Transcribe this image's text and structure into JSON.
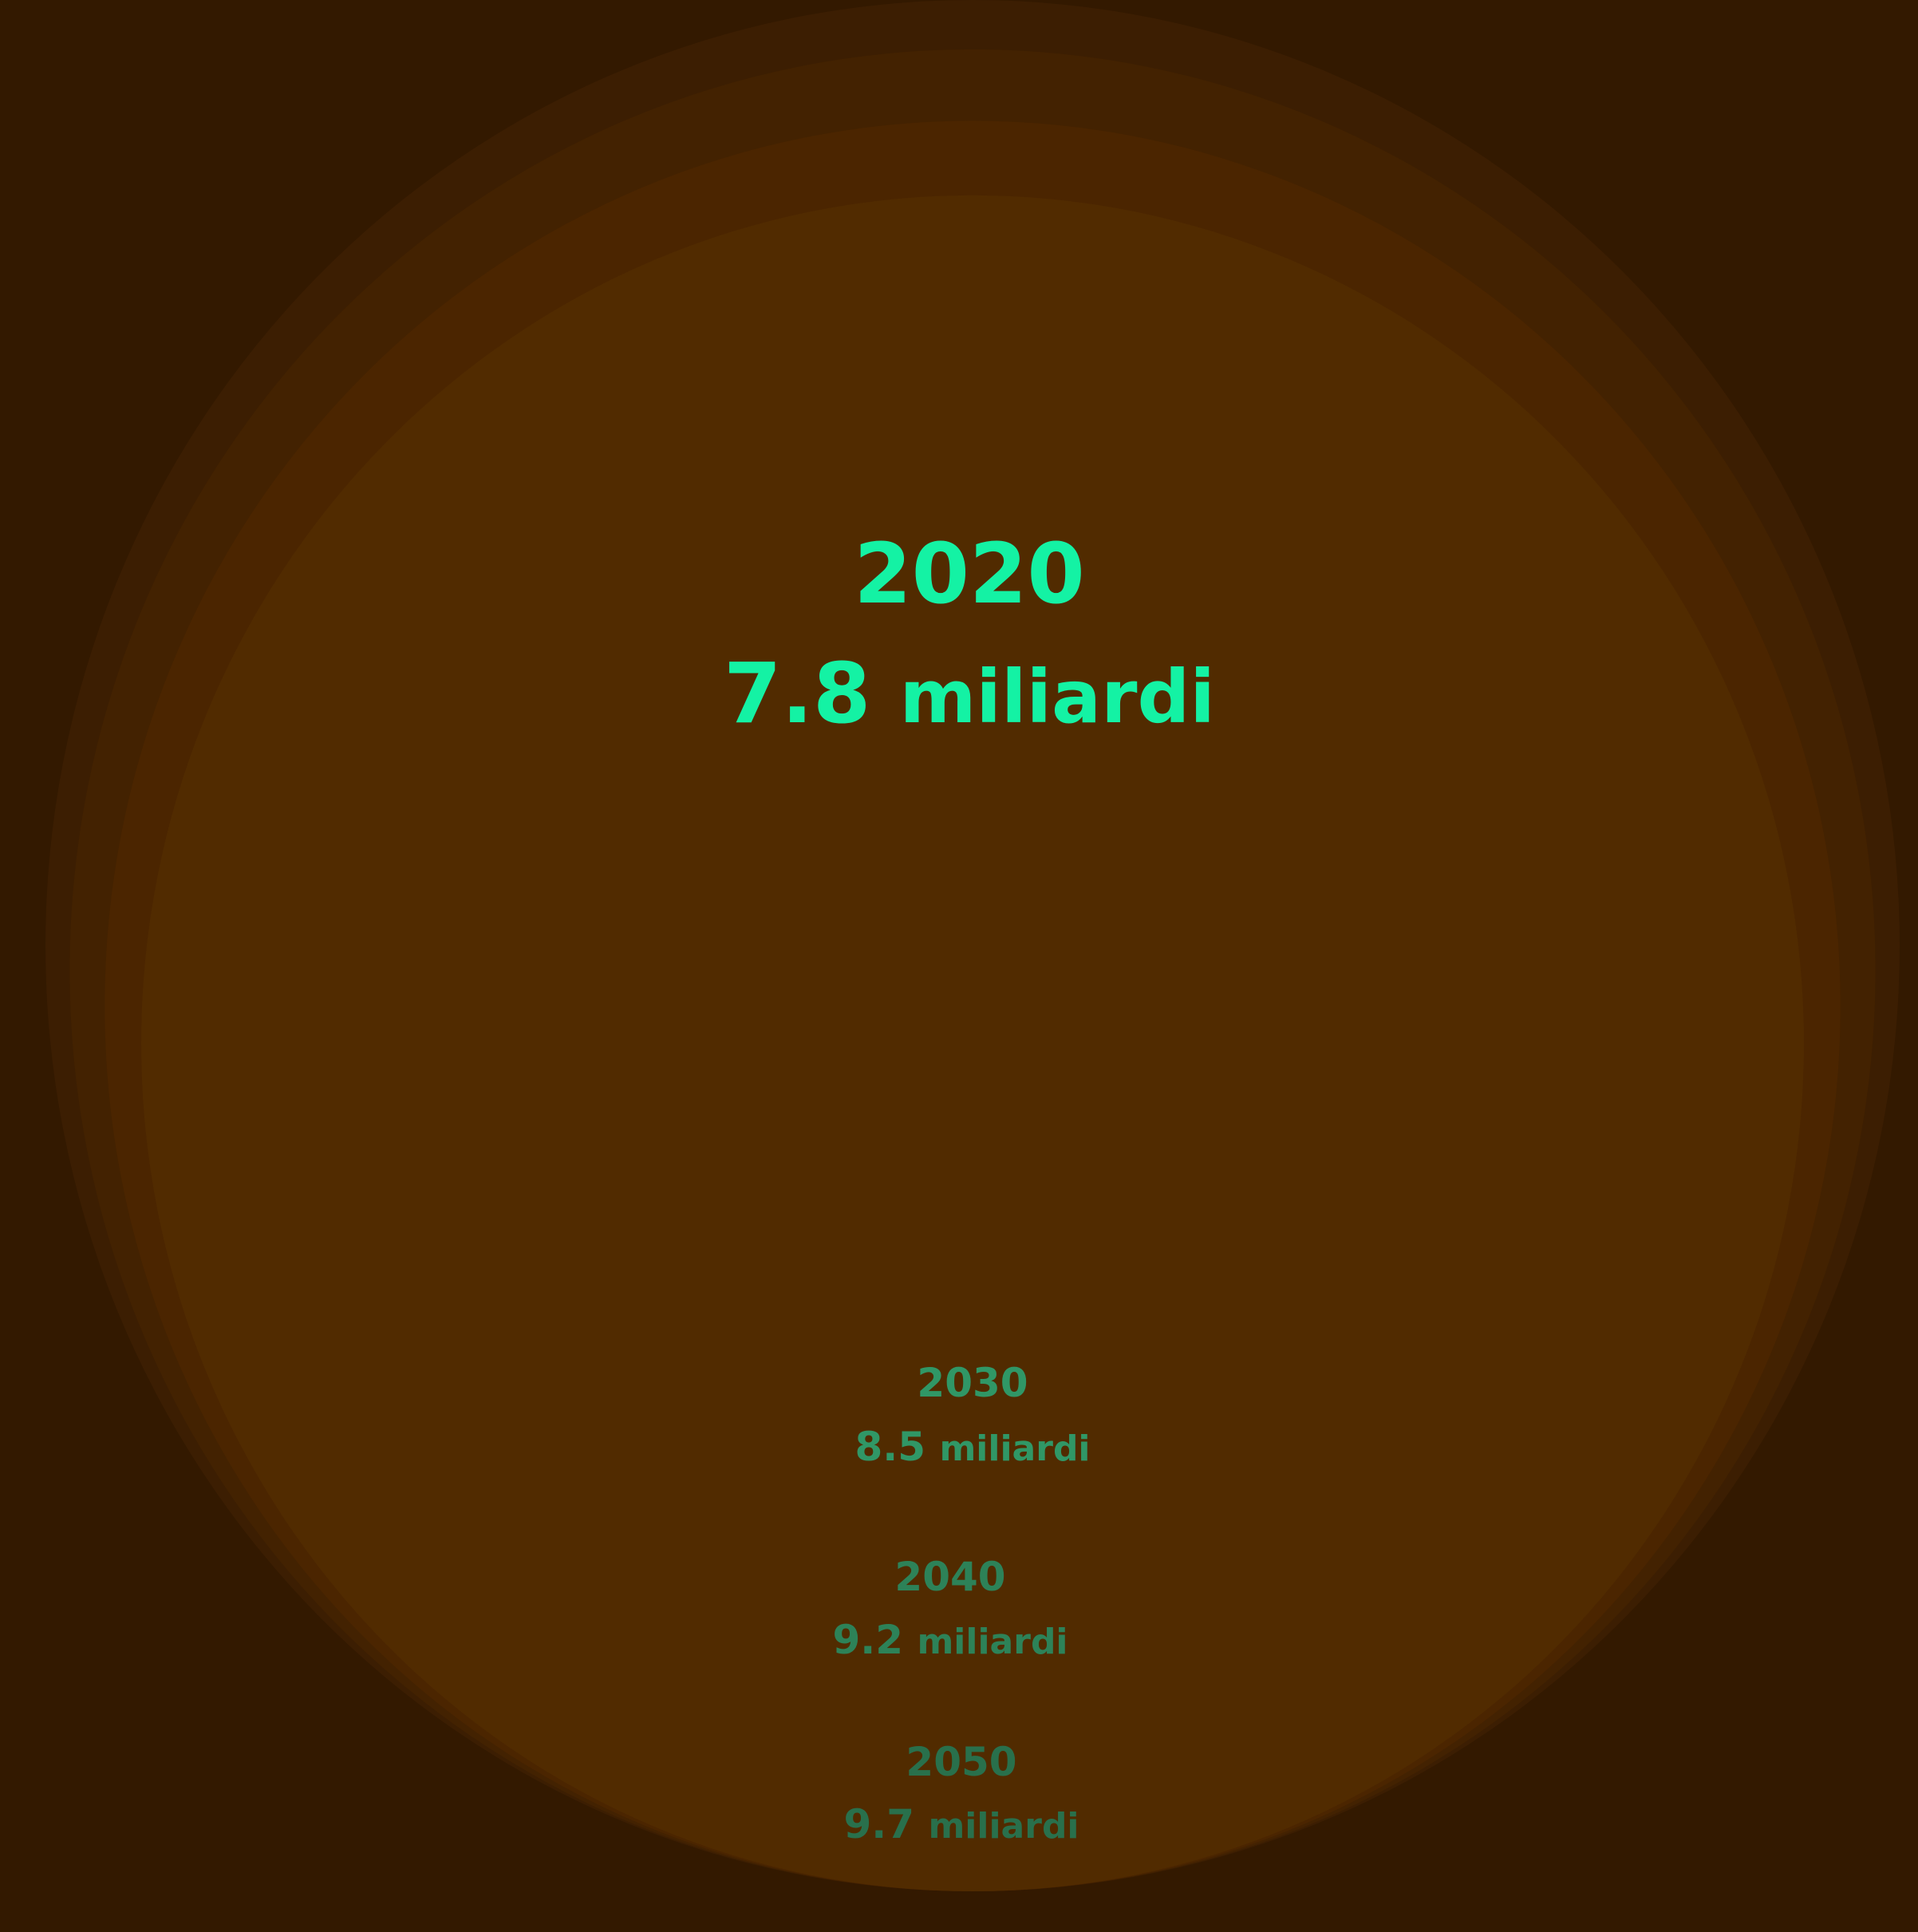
{
  "chart_data": {
    "type": "bubble",
    "title": "",
    "unit": "miliardi",
    "series": [
      {
        "year": "2020",
        "value": 7.8,
        "label_number": "7.8",
        "label_unit": "miliardi",
        "fill": "#512b00",
        "text_color": "#14f2a4",
        "emphasis": true
      },
      {
        "year": "2030",
        "value": 8.5,
        "label_number": "8.5",
        "label_unit": "miliardi",
        "fill": "#4b2500",
        "text_color": "#309766",
        "emphasis": false
      },
      {
        "year": "2040",
        "value": 9.2,
        "label_number": "9.2",
        "label_unit": "miliardi",
        "fill": "#432201",
        "text_color": "#2d8258",
        "emphasis": false
      },
      {
        "year": "2050",
        "value": 9.7,
        "label_number": "9.7",
        "label_unit": "miliardi",
        "fill": "#3c1e02",
        "text_color": "#29704c",
        "emphasis": false
      }
    ]
  },
  "colors": {
    "background": "#331900"
  }
}
